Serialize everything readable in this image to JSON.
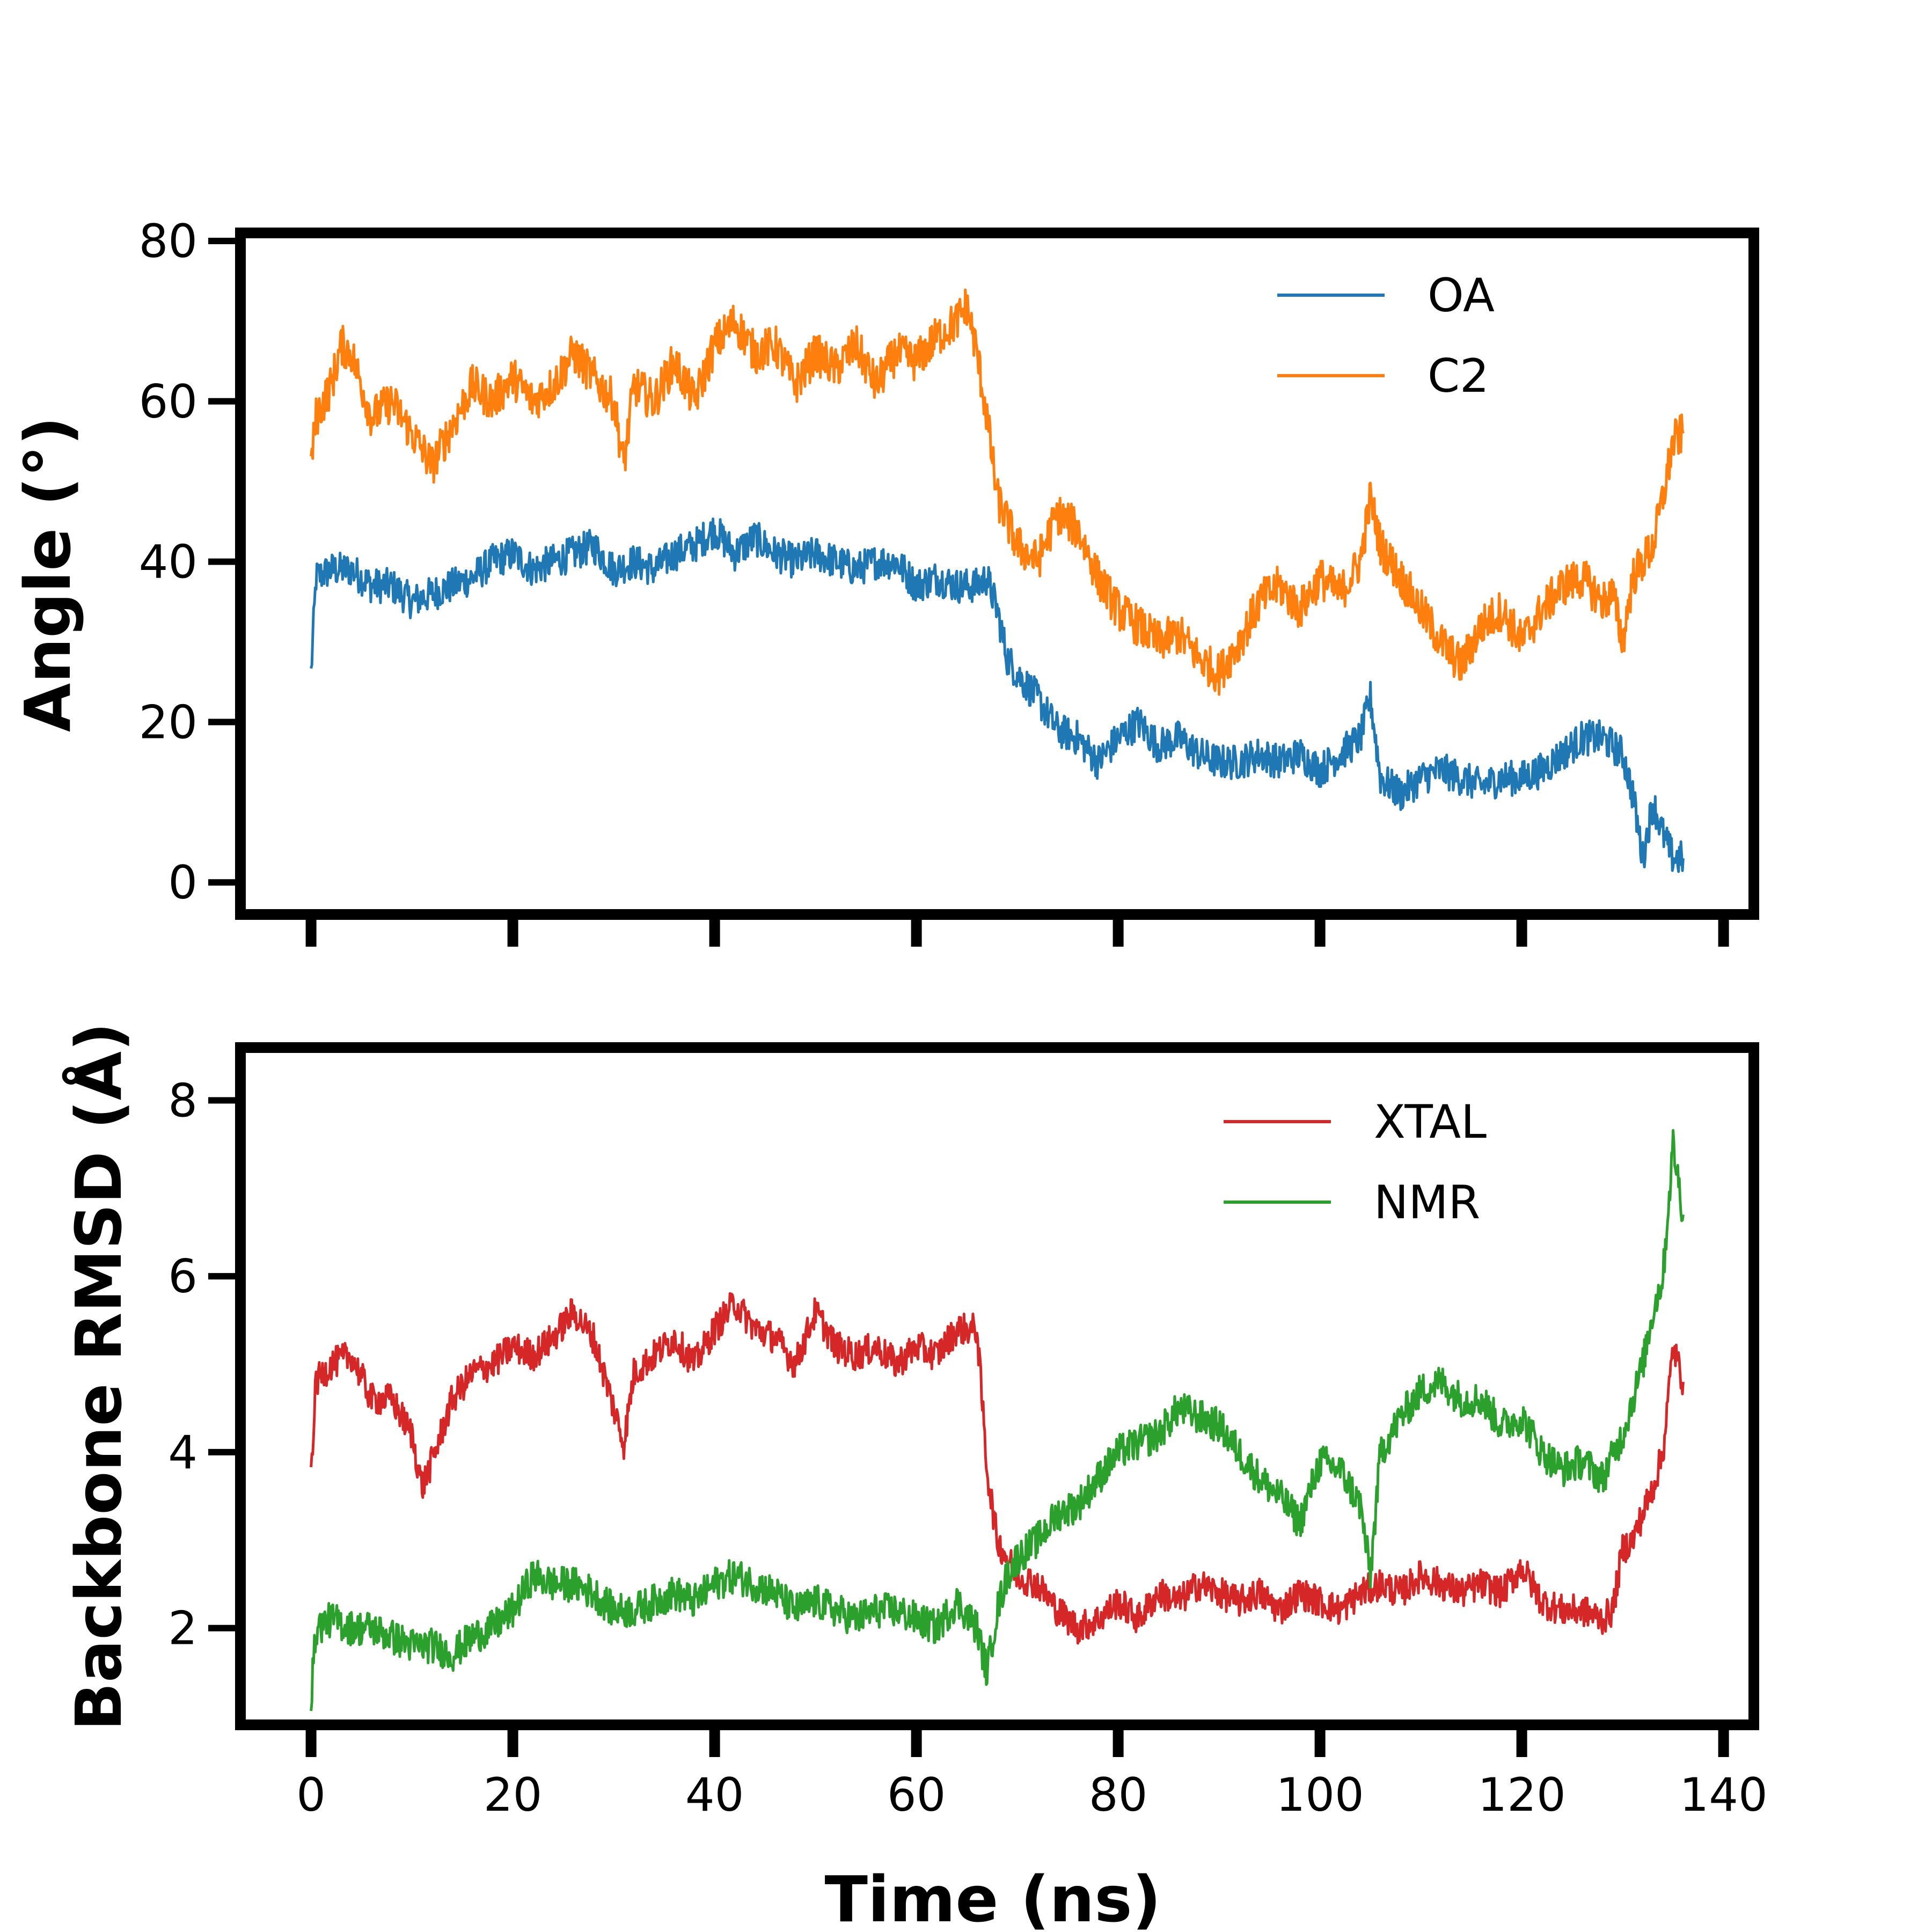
{
  "figure": {
    "xlabel": "Time (ns)"
  },
  "chart_data": [
    {
      "type": "line",
      "panel": "top",
      "ylabel": "Angle (°)",
      "xlim": [
        -7,
        143
      ],
      "ylim": [
        -4,
        81
      ],
      "x_ticks": [
        0,
        20,
        40,
        60,
        80,
        100,
        120,
        140
      ],
      "y_ticks": [
        0,
        20,
        40,
        60,
        80
      ],
      "legend_position": "top-right",
      "series": [
        {
          "name": "OA",
          "color": "#1f77b4",
          "x": [
            0,
            0.5,
            2,
            4,
            6,
            8,
            10,
            12,
            14,
            16,
            18,
            20,
            22,
            24,
            26,
            28,
            30,
            32,
            34,
            36,
            38,
            40,
            42,
            44,
            46,
            48,
            50,
            52,
            54,
            56,
            58,
            60,
            62,
            64,
            66,
            67,
            68,
            69,
            70,
            72,
            74,
            76,
            78,
            80,
            82,
            84,
            86,
            88,
            90,
            92,
            94,
            96,
            98,
            100,
            102,
            104,
            105,
            106,
            108,
            110,
            112,
            114,
            116,
            118,
            120,
            122,
            124,
            126,
            128,
            129,
            130,
            131,
            132,
            133,
            134,
            135,
            136
          ],
          "y": [
            26,
            38,
            39,
            39,
            37,
            37,
            35,
            36,
            37,
            38,
            40,
            41,
            39,
            40,
            41,
            42,
            39,
            40,
            39,
            41,
            42,
            44,
            41,
            43,
            41,
            40,
            41,
            40,
            39,
            40,
            40,
            37,
            38,
            37,
            37,
            38,
            34,
            28,
            26,
            23,
            19,
            18,
            15,
            18,
            20,
            17,
            18,
            16,
            15,
            15,
            16,
            15,
            16,
            14,
            16,
            18,
            23,
            13,
            11,
            13,
            14,
            13,
            12,
            13,
            13,
            14,
            16,
            18,
            18,
            17,
            16,
            11,
            3,
            10,
            6,
            3,
            3
          ]
        },
        {
          "name": "C2",
          "color": "#ff7f0e",
          "x": [
            0,
            0.5,
            2,
            3,
            4,
            6,
            8,
            10,
            12,
            14,
            16,
            18,
            20,
            22,
            24,
            26,
            28,
            30,
            31,
            32,
            34,
            36,
            38,
            40,
            42,
            44,
            46,
            48,
            50,
            52,
            54,
            56,
            58,
            60,
            62,
            64,
            65,
            66,
            67,
            68,
            69,
            70,
            72,
            74,
            76,
            78,
            80,
            82,
            84,
            86,
            88,
            90,
            92,
            94,
            96,
            98,
            100,
            102,
            104,
            105,
            106,
            108,
            110,
            112,
            114,
            116,
            118,
            120,
            122,
            124,
            126,
            128,
            129,
            130,
            131,
            132,
            133,
            134,
            135,
            136
          ],
          "y": [
            52,
            58,
            62,
            67,
            66,
            58,
            60,
            56,
            52,
            57,
            62,
            60,
            63,
            60,
            62,
            66,
            63,
            60,
            52,
            62,
            60,
            65,
            60,
            67,
            70,
            66,
            67,
            62,
            66,
            64,
            67,
            62,
            66,
            65,
            68,
            70,
            72,
            66,
            58,
            48,
            45,
            42,
            40,
            46,
            44,
            38,
            34,
            32,
            30,
            31,
            28,
            26,
            30,
            35,
            37,
            34,
            38,
            36,
            40,
            48,
            42,
            38,
            34,
            30,
            27,
            32,
            34,
            30,
            34,
            37,
            38,
            35,
            36,
            30,
            38,
            40,
            42,
            48,
            55,
            56
          ]
        }
      ]
    },
    {
      "type": "line",
      "panel": "bottom",
      "ylabel": "Backbone RMSD (Å)",
      "xlabel": "Time (ns)",
      "xlim": [
        -7,
        143
      ],
      "ylim": [
        0.9,
        8.6
      ],
      "x_ticks": [
        0,
        20,
        40,
        60,
        80,
        100,
        120,
        140
      ],
      "y_ticks": [
        2,
        4,
        6,
        8
      ],
      "legend_position": "top-right",
      "series": [
        {
          "name": "XTAL",
          "color": "#d62728",
          "x": [
            0,
            0.5,
            2,
            4,
            6,
            8,
            10,
            11,
            12,
            14,
            16,
            18,
            20,
            22,
            24,
            26,
            28,
            30,
            31,
            32,
            34,
            36,
            38,
            40,
            42,
            44,
            46,
            48,
            50,
            52,
            54,
            56,
            58,
            60,
            62,
            64,
            66,
            67,
            68,
            69,
            70,
            72,
            74,
            76,
            78,
            80,
            82,
            84,
            86,
            88,
            90,
            92,
            94,
            96,
            98,
            100,
            102,
            104,
            106,
            108,
            110,
            112,
            114,
            116,
            118,
            120,
            122,
            124,
            126,
            128,
            129,
            130,
            131,
            132,
            133,
            134,
            135,
            136
          ],
          "y": [
            3.8,
            4.8,
            5.0,
            5.1,
            4.6,
            4.6,
            4.2,
            3.6,
            3.9,
            4.6,
            4.9,
            5.0,
            5.2,
            5.1,
            5.3,
            5.6,
            5.3,
            4.5,
            4.1,
            4.9,
            5.1,
            5.3,
            5.0,
            5.4,
            5.7,
            5.4,
            5.3,
            5.0,
            5.6,
            5.2,
            5.1,
            5.2,
            5.0,
            5.2,
            5.1,
            5.4,
            5.4,
            3.8,
            3.0,
            2.8,
            2.6,
            2.5,
            2.2,
            2.0,
            2.1,
            2.3,
            2.1,
            2.4,
            2.3,
            2.5,
            2.4,
            2.3,
            2.4,
            2.2,
            2.4,
            2.3,
            2.2,
            2.4,
            2.5,
            2.4,
            2.6,
            2.5,
            2.4,
            2.5,
            2.4,
            2.7,
            2.3,
            2.2,
            2.2,
            2.1,
            2.2,
            2.9,
            3.0,
            3.3,
            3.6,
            4.0,
            5.2,
            4.8
          ]
        },
        {
          "name": "NMR",
          "color": "#2ca02c",
          "x": [
            0,
            0.5,
            2,
            4,
            6,
            8,
            10,
            12,
            14,
            16,
            18,
            20,
            22,
            24,
            26,
            28,
            30,
            32,
            34,
            36,
            38,
            40,
            42,
            44,
            46,
            48,
            50,
            52,
            54,
            56,
            58,
            60,
            62,
            64,
            66,
            67,
            68,
            69,
            70,
            72,
            74,
            76,
            78,
            80,
            82,
            84,
            86,
            88,
            90,
            92,
            94,
            96,
            98,
            100,
            102,
            104,
            105,
            106,
            108,
            110,
            112,
            114,
            116,
            118,
            120,
            122,
            124,
            126,
            128,
            130,
            132,
            133,
            134,
            135,
            136
          ],
          "y": [
            1.2,
            2.0,
            2.1,
            2.0,
            2.0,
            1.9,
            1.8,
            1.8,
            1.7,
            1.9,
            2.0,
            2.2,
            2.6,
            2.5,
            2.5,
            2.4,
            2.2,
            2.2,
            2.3,
            2.4,
            2.3,
            2.5,
            2.6,
            2.5,
            2.4,
            2.2,
            2.3,
            2.2,
            2.1,
            2.2,
            2.2,
            2.1,
            2.0,
            2.3,
            2.0,
            1.5,
            2.2,
            2.6,
            2.8,
            3.0,
            3.3,
            3.4,
            3.7,
            4.0,
            4.1,
            4.2,
            4.5,
            4.4,
            4.3,
            4.0,
            3.7,
            3.5,
            3.2,
            3.9,
            3.8,
            3.4,
            2.6,
            4.0,
            4.4,
            4.7,
            4.8,
            4.6,
            4.6,
            4.3,
            4.4,
            4.0,
            3.8,
            3.9,
            3.7,
            4.2,
            5.0,
            5.6,
            6.0,
            7.5,
            6.7
          ]
        }
      ]
    }
  ]
}
